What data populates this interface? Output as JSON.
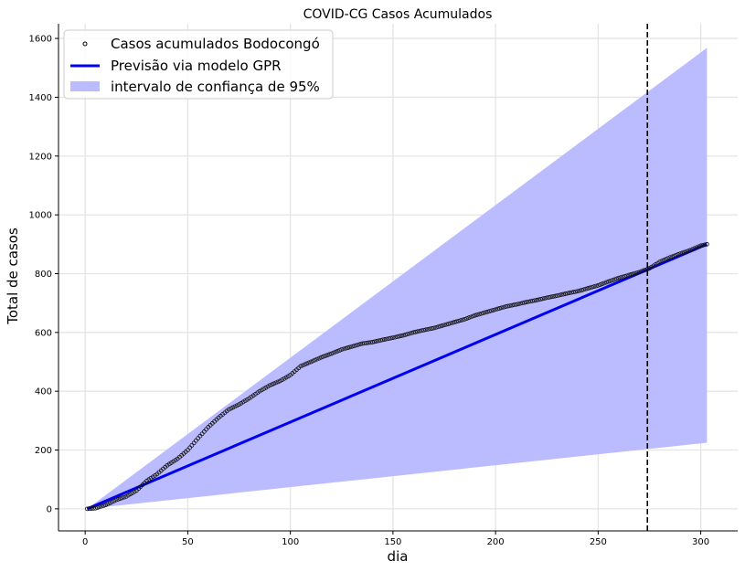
{
  "chart_data": {
    "type": "line",
    "title": "COVID-CG Casos Acumulados",
    "xlabel": "dia",
    "ylabel": "Total de casos",
    "xlim": [
      -13,
      318
    ],
    "ylim": [
      -75,
      1650
    ],
    "xticks": [
      0,
      50,
      100,
      150,
      200,
      250,
      300
    ],
    "yticks": [
      0,
      200,
      400,
      600,
      800,
      1000,
      1200,
      1400,
      1600
    ],
    "grid": true,
    "legend_position": "upper-left",
    "vline_x": 274,
    "series": [
      {
        "name": "Casos acumulados Bodocongó",
        "kind": "scatter",
        "x": [
          1,
          5,
          10,
          15,
          20,
          25,
          30,
          35,
          40,
          45,
          50,
          55,
          60,
          65,
          70,
          75,
          80,
          85,
          90,
          95,
          100,
          105,
          110,
          115,
          120,
          125,
          130,
          135,
          140,
          145,
          150,
          155,
          160,
          165,
          170,
          175,
          180,
          185,
          190,
          195,
          200,
          205,
          210,
          215,
          220,
          225,
          230,
          235,
          240,
          245,
          250,
          255,
          260,
          265,
          270,
          275,
          280,
          285,
          290,
          295,
          300,
          303
        ],
        "y": [
          0,
          2,
          13,
          30,
          42,
          62,
          95,
          118,
          148,
          170,
          200,
          240,
          278,
          310,
          338,
          355,
          376,
          400,
          420,
          435,
          455,
          485,
          500,
          515,
          528,
          542,
          552,
          562,
          567,
          575,
          582,
          590,
          600,
          608,
          615,
          625,
          635,
          645,
          658,
          668,
          678,
          688,
          695,
          703,
          710,
          718,
          725,
          733,
          740,
          750,
          760,
          773,
          785,
          795,
          805,
          818,
          840,
          855,
          868,
          880,
          895,
          900
        ]
      },
      {
        "name": "Previsão via modelo GPR",
        "kind": "line",
        "color": "#0000ee",
        "x": [
          1,
          303
        ],
        "y": [
          0,
          900
        ]
      },
      {
        "name": "intervalo de confiança de 95%",
        "kind": "band",
        "color": "#bbbbff",
        "x": [
          1,
          303
        ],
        "lower": [
          0,
          225
        ],
        "upper": [
          0,
          1568
        ]
      }
    ]
  }
}
